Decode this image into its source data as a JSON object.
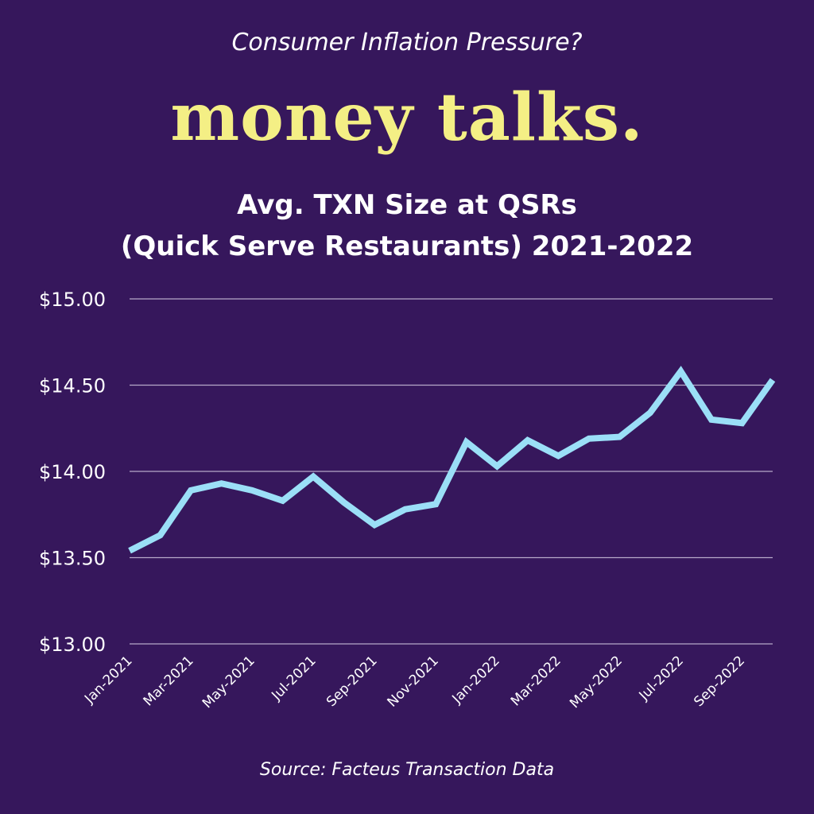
{
  "header": {
    "kicker": "Consumer Inflation Pressure?",
    "brand": "money talks.",
    "title_line1": "Avg. TXN Size at QSRs",
    "title_line2": "(Quick Serve Restaurants) 2021-2022"
  },
  "source": "Source:  Facteus Transaction Data",
  "colors": {
    "background": "#36175c",
    "line": "#9bdff7",
    "brand": "#f4ef85",
    "grid": "#b7a9c9"
  },
  "chart_data": {
    "type": "line",
    "title": "Avg. TXN Size at QSRs (Quick Serve Restaurants) 2021-2022",
    "xlabel": "",
    "ylabel": "",
    "ylim": [
      13.0,
      15.0
    ],
    "yticks": [
      15.0,
      14.5,
      14.0,
      13.5,
      13.0
    ],
    "ytick_labels": [
      "$15.00",
      "$14.50",
      "$14.00",
      "$13.50",
      "$13.00"
    ],
    "grid": true,
    "x": [
      "Jan-2021",
      "Feb-2021",
      "Mar-2021",
      "Apr-2021",
      "May-2021",
      "Jun-2021",
      "Jul-2021",
      "Aug-2021",
      "Sep-2021",
      "Oct-2021",
      "Nov-2021",
      "Dec-2021",
      "Jan-2022",
      "Feb-2022",
      "Mar-2022",
      "Apr-2022",
      "May-2022",
      "Jun-2022",
      "Jul-2022",
      "Aug-2022",
      "Sep-2022",
      "Oct-2022"
    ],
    "xtick_labels": [
      "Jan-2021",
      "Mar-2021",
      "May-2021",
      "Jul-2021",
      "Sep-2021",
      "Nov-2021",
      "Jan-2022",
      "Mar-2022",
      "May-2022",
      "Jul-2022",
      "Sep-2022"
    ],
    "series": [
      {
        "name": "Avg. TXN Size",
        "values": [
          13.54,
          13.63,
          13.89,
          13.93,
          13.89,
          13.83,
          13.97,
          13.82,
          13.69,
          13.78,
          13.81,
          14.17,
          14.03,
          14.18,
          14.09,
          14.19,
          14.2,
          14.34,
          14.58,
          14.3,
          14.28,
          14.53
        ]
      }
    ]
  }
}
